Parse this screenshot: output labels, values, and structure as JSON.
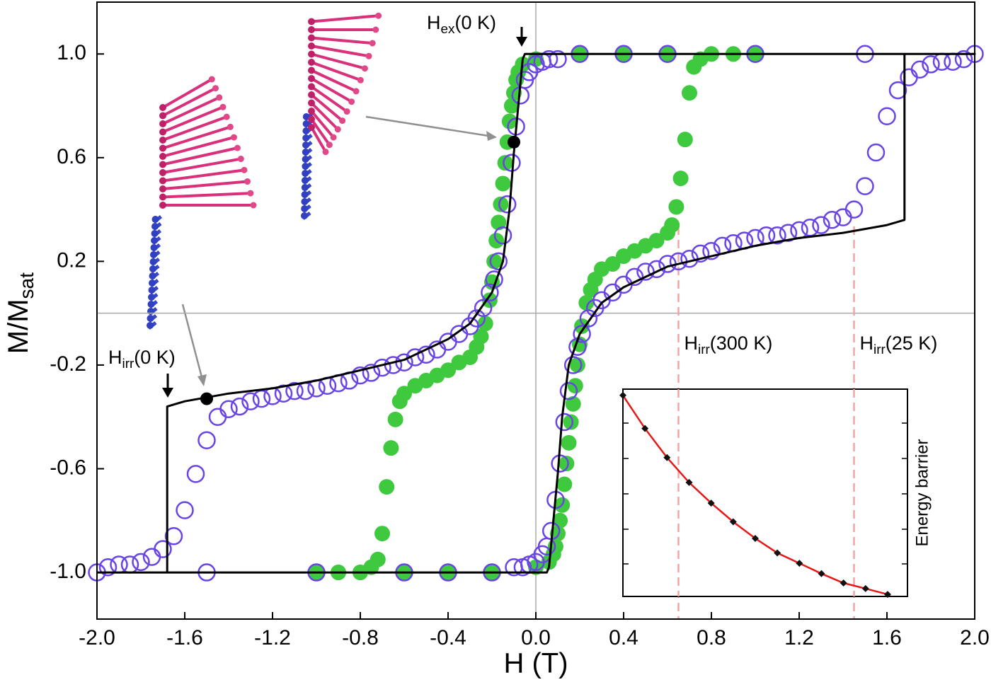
{
  "chart_data": {
    "type": "line",
    "xlabel": "H (T)",
    "ylabel": {
      "main": "M/M",
      "sub": "sat"
    },
    "xlim": [
      -2.0,
      2.0
    ],
    "ylim": [
      -1.18,
      1.2
    ],
    "xticks": [
      {
        "value": -2.0,
        "label": "-2.0"
      },
      -1.6,
      -1.2,
      -0.8,
      -0.4,
      {
        "value": 0.0,
        "label": "0.0"
      },
      0.4,
      0.8,
      1.2,
      1.6,
      {
        "value": 2.0,
        "label": "2.0"
      }
    ],
    "yticks": [
      {
        "value": 1.0,
        "label": "1.0"
      },
      0.6,
      0.2,
      -0.2,
      -0.6,
      {
        "value": -1.0,
        "label": "-1.0"
      }
    ],
    "zero_lines": true,
    "series": [
      {
        "type": "scatter",
        "marker": "filled",
        "color": "#3ec93e",
        "x": [
          1.0,
          0.9,
          0.8,
          0.75,
          0.72,
          0.7,
          0.68,
          0.66,
          0.64,
          0.62,
          0.6,
          0.55,
          0.5,
          0.45,
          0.4,
          0.35,
          0.3,
          0.27,
          0.25,
          0.23,
          0.21,
          0.2,
          0.19,
          0.18,
          0.17,
          0.16,
          0.15,
          0.14,
          0.13,
          0.12,
          0.11,
          0.1,
          0.09,
          0.08,
          0.06,
          0.0,
          -0.2,
          -0.4,
          -0.6,
          -0.8,
          -0.9,
          -1.0
        ],
        "values": [
          1.0,
          1.0,
          1.0,
          0.98,
          0.95,
          0.85,
          0.67,
          0.52,
          0.41,
          0.34,
          0.31,
          0.28,
          0.26,
          0.24,
          0.22,
          0.19,
          0.17,
          0.13,
          0.09,
          0.04,
          -0.05,
          -0.12,
          -0.2,
          -0.28,
          -0.35,
          -0.42,
          -0.5,
          -0.58,
          -0.66,
          -0.74,
          -0.8,
          -0.85,
          -0.9,
          -0.93,
          -0.96,
          -0.98,
          -1.0,
          -1.0,
          -1.0,
          -1.0,
          -1.0,
          -1.0
        ]
      },
      {
        "type": "scatter",
        "marker": "filled",
        "color": "#3ec93e",
        "x": [
          -1.0,
          -0.9,
          -0.8,
          -0.75,
          -0.72,
          -0.7,
          -0.68,
          -0.66,
          -0.64,
          -0.62,
          -0.6,
          -0.55,
          -0.5,
          -0.45,
          -0.4,
          -0.35,
          -0.3,
          -0.27,
          -0.25,
          -0.23,
          -0.21,
          -0.2,
          -0.19,
          -0.18,
          -0.17,
          -0.16,
          -0.15,
          -0.14,
          -0.13,
          -0.12,
          -0.11,
          -0.1,
          -0.09,
          -0.08,
          -0.06,
          0.0,
          0.2,
          0.4,
          0.6,
          0.8,
          0.9,
          1.0
        ],
        "values": [
          -1.0,
          -1.0,
          -1.0,
          -0.98,
          -0.95,
          -0.85,
          -0.67,
          -0.52,
          -0.41,
          -0.34,
          -0.31,
          -0.28,
          -0.26,
          -0.24,
          -0.22,
          -0.19,
          -0.17,
          -0.13,
          -0.09,
          -0.04,
          0.05,
          0.12,
          0.2,
          0.28,
          0.35,
          0.42,
          0.5,
          0.58,
          0.66,
          0.74,
          0.8,
          0.85,
          0.9,
          0.93,
          0.96,
          0.98,
          1.0,
          1.0,
          1.0,
          1.0,
          1.0,
          1.0
        ]
      },
      {
        "type": "scatter",
        "marker": "open",
        "color": "#6a45e6",
        "x": [
          2.0,
          1.95,
          1.9,
          1.85,
          1.8,
          1.75,
          1.7,
          1.65,
          1.6,
          1.55,
          1.5,
          1.45,
          1.4,
          1.35,
          1.3,
          1.25,
          1.2,
          1.15,
          1.1,
          1.05,
          1.0,
          0.95,
          0.9,
          0.85,
          0.8,
          0.75,
          0.7,
          0.65,
          0.6,
          0.55,
          0.5,
          0.45,
          0.4,
          0.35,
          0.3,
          0.27,
          0.24,
          0.21,
          0.19,
          0.17,
          0.15,
          0.13,
          0.11,
          0.09,
          0.07,
          0.05,
          0.03,
          0.0,
          -0.03,
          -0.06,
          -0.1,
          -0.2,
          -0.4,
          -0.6,
          -1.0,
          -1.5
        ],
        "values": [
          1.0,
          0.98,
          0.97,
          0.97,
          0.96,
          0.94,
          0.91,
          0.86,
          0.76,
          0.62,
          0.49,
          0.4,
          0.37,
          0.36,
          0.34,
          0.33,
          0.32,
          0.31,
          0.3,
          0.3,
          0.29,
          0.28,
          0.27,
          0.26,
          0.24,
          0.23,
          0.21,
          0.2,
          0.19,
          0.17,
          0.16,
          0.14,
          0.11,
          0.08,
          0.05,
          0.02,
          -0.02,
          -0.08,
          -0.13,
          -0.2,
          -0.3,
          -0.42,
          -0.58,
          -0.72,
          -0.84,
          -0.9,
          -0.93,
          -0.96,
          -0.97,
          -0.98,
          -0.98,
          -1.0,
          -1.0,
          -1.0,
          -1.0,
          -1.0
        ]
      },
      {
        "type": "scatter",
        "marker": "open",
        "color": "#6a45e6",
        "x": [
          -2.0,
          -1.95,
          -1.9,
          -1.85,
          -1.8,
          -1.75,
          -1.7,
          -1.65,
          -1.6,
          -1.55,
          -1.5,
          -1.45,
          -1.4,
          -1.35,
          -1.3,
          -1.25,
          -1.2,
          -1.15,
          -1.1,
          -1.05,
          -1.0,
          -0.95,
          -0.9,
          -0.85,
          -0.8,
          -0.75,
          -0.7,
          -0.65,
          -0.6,
          -0.55,
          -0.5,
          -0.45,
          -0.4,
          -0.35,
          -0.3,
          -0.27,
          -0.24,
          -0.21,
          -0.19,
          -0.17,
          -0.15,
          -0.13,
          -0.11,
          -0.09,
          -0.07,
          -0.05,
          -0.03,
          0.0,
          0.03,
          0.06,
          0.1,
          0.2,
          0.4,
          0.6,
          1.0,
          1.5
        ],
        "values": [
          -1.0,
          -0.98,
          -0.97,
          -0.97,
          -0.96,
          -0.94,
          -0.91,
          -0.86,
          -0.76,
          -0.62,
          -0.49,
          -0.4,
          -0.37,
          -0.36,
          -0.34,
          -0.33,
          -0.32,
          -0.31,
          -0.3,
          -0.3,
          -0.29,
          -0.28,
          -0.27,
          -0.26,
          -0.24,
          -0.23,
          -0.21,
          -0.2,
          -0.19,
          -0.17,
          -0.16,
          -0.14,
          -0.11,
          -0.08,
          -0.05,
          -0.02,
          0.02,
          0.08,
          0.13,
          0.2,
          0.3,
          0.42,
          0.58,
          0.72,
          0.84,
          0.9,
          0.93,
          0.96,
          0.97,
          0.98,
          0.98,
          1.0,
          1.0,
          1.0,
          1.0,
          1.0
        ]
      },
      {
        "type": "line",
        "color": "#000000",
        "x": [
          -2.0,
          -1.68,
          -1.68,
          -1.6,
          -1.4,
          -1.2,
          -1.0,
          -0.8,
          -0.6,
          -0.4,
          -0.3,
          -0.2,
          -0.15,
          -0.12,
          -0.1,
          -0.08,
          -0.06,
          -0.05,
          2.0,
          1.68,
          1.68,
          1.6,
          1.4,
          1.2,
          1.0,
          0.8,
          0.6,
          0.4,
          0.3,
          0.2,
          0.15,
          0.12,
          0.1,
          0.08,
          0.06,
          0.05,
          -1.68
        ],
        "values": [
          -1.0,
          -1.0,
          -0.36,
          -0.34,
          -0.31,
          -0.29,
          -0.26,
          -0.22,
          -0.18,
          -0.1,
          -0.04,
          0.08,
          0.2,
          0.4,
          0.62,
          0.8,
          0.98,
          1.0,
          1.0,
          1.0,
          0.36,
          0.34,
          0.31,
          0.29,
          0.26,
          0.22,
          0.18,
          0.1,
          0.04,
          -0.08,
          -0.2,
          -0.4,
          -0.62,
          -0.8,
          -0.98,
          -1.0,
          -1.0
        ]
      },
      {
        "type": "scatter",
        "marker": "dot",
        "color": "#000000",
        "x": [
          -0.1,
          -1.5
        ],
        "values": [
          0.66,
          -0.33
        ]
      }
    ],
    "annotations": [
      {
        "main": "H",
        "sub": "ex",
        "rest": "(0 K)"
      },
      {
        "main": "H",
        "sub": "irr",
        "rest": "(0 K)"
      }
    ],
    "vlines": [
      {
        "x": 0.65,
        "color": "#f5a3a3",
        "label_color": "#e82a2a",
        "label": {
          "main": "H",
          "sub": "irr",
          "rest": "(300 K)"
        }
      },
      {
        "x": 1.45,
        "color": "#f5a3a3",
        "label_color": "#e82a2a",
        "label": {
          "main": "H",
          "sub": "irr",
          "rest": "(25 K)"
        }
      }
    ],
    "inset": {
      "type": "line",
      "ylabel": "Energy barrier",
      "xlim": [
        0.4,
        1.69
      ],
      "ylim": [
        0,
        1
      ],
      "color": "#e81818",
      "marker_color": "#111111",
      "x": [
        0.4,
        0.5,
        0.6,
        0.7,
        0.8,
        0.9,
        1.0,
        1.1,
        1.2,
        1.3,
        1.4,
        1.5,
        1.6
      ],
      "values": [
        0.97,
        0.81,
        0.67,
        0.55,
        0.45,
        0.36,
        0.28,
        0.21,
        0.16,
        0.11,
        0.065,
        0.038,
        0.01
      ]
    }
  }
}
